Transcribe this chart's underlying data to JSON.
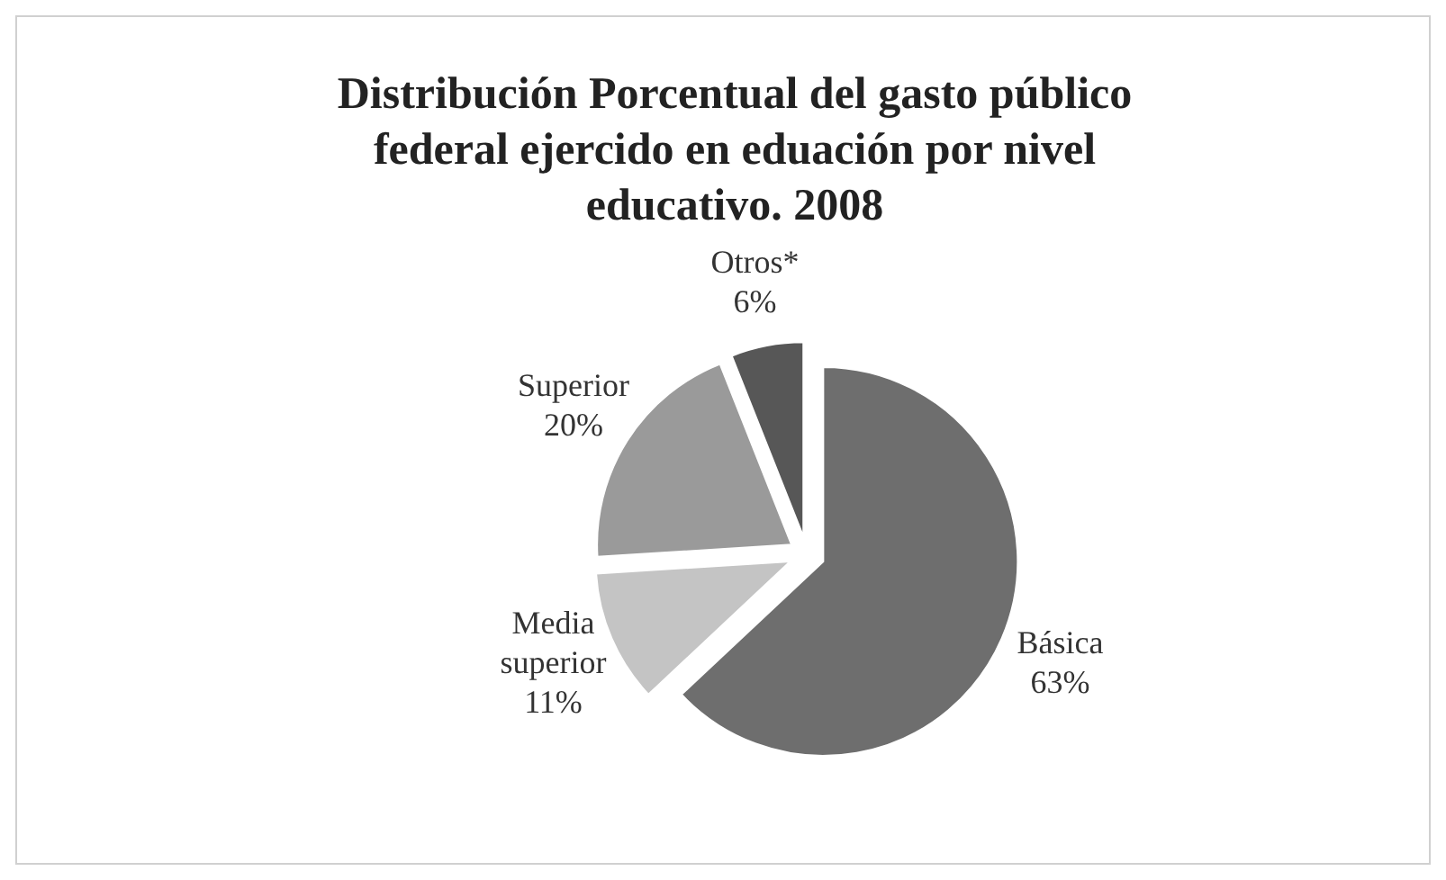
{
  "chart_data": {
    "type": "pie",
    "title": "Distribución Porcentual del gasto público federal ejercido en eduación por nivel educativo. 2008",
    "categories": [
      "Básica",
      "Media superior",
      "Superior",
      "Otros*"
    ],
    "values": [
      63,
      11,
      20,
      6
    ],
    "colors": [
      "#6e6e6e",
      "#c4c4c4",
      "#9a9a9a",
      "#575757"
    ],
    "value_labels": [
      "63%",
      "11%",
      "20%",
      "6%"
    ]
  }
}
